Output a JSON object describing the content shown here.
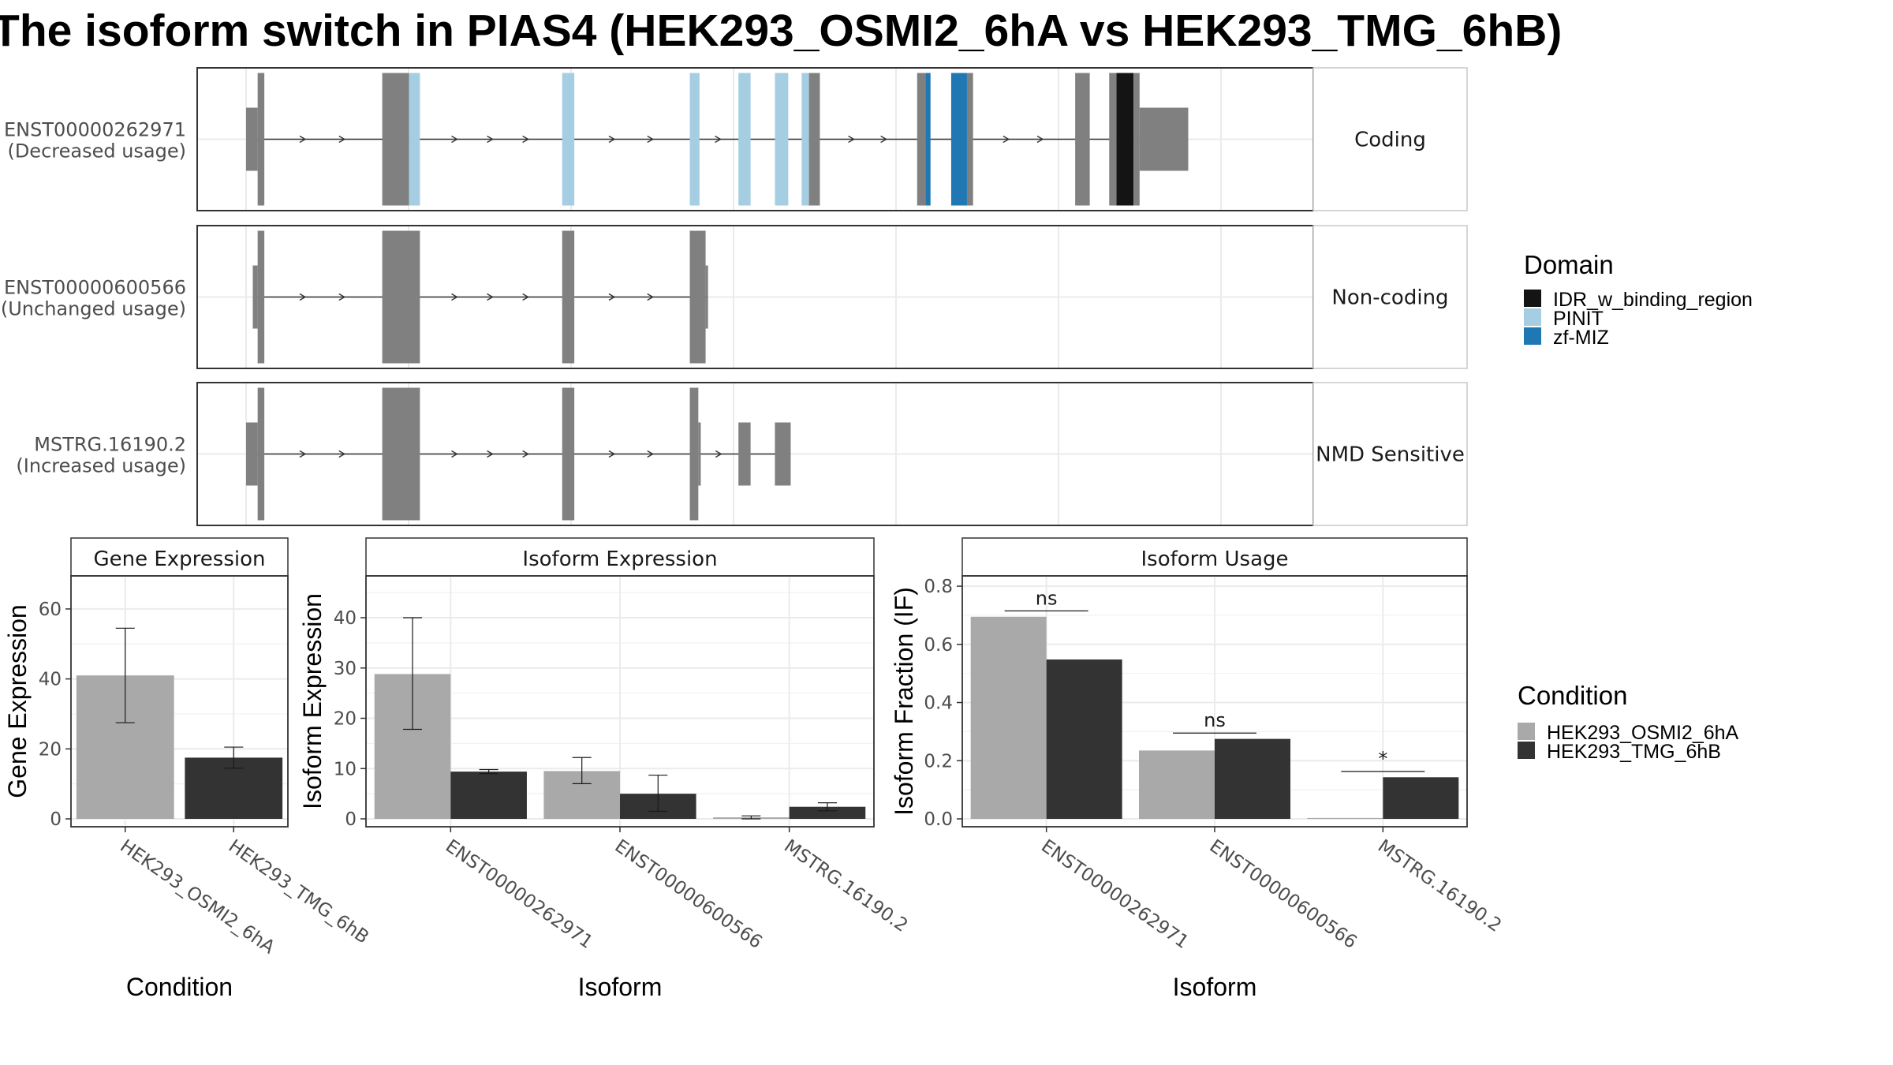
{
  "title": "The isoform switch in PIAS4 (HEK293_OSMI2_6hA vs HEK293_TMG_6hB)",
  "colors": {
    "exon": "#808080",
    "idr": "#141414",
    "pinit": "#a6cee3",
    "zfmiz": "#1f78b4",
    "cond_a": "#a9a9a9",
    "cond_b": "#333333"
  },
  "structure": {
    "transcripts": [
      {
        "id": "ENST00000262971",
        "usage": "(Decreased usage)",
        "class": "Coding",
        "segments": [
          {
            "s": 0.0,
            "e": 0.95,
            "t": "u"
          },
          {
            "s": 0.95,
            "e": 1.5,
            "t": "c"
          },
          {
            "s": 11.2,
            "e": 13.4,
            "t": "c"
          },
          {
            "s": 13.4,
            "e": 14.3,
            "t": "p"
          },
          {
            "s": 26.0,
            "e": 27.0,
            "t": "p"
          },
          {
            "s": 36.5,
            "e": 37.3,
            "t": "p"
          },
          {
            "s": 40.5,
            "e": 41.5,
            "t": "p"
          },
          {
            "s": 43.5,
            "e": 44.6,
            "t": "p"
          },
          {
            "s": 45.7,
            "e": 46.3,
            "t": "p"
          },
          {
            "s": 46.3,
            "e": 47.2,
            "t": "c"
          },
          {
            "s": 55.2,
            "e": 55.9,
            "t": "c"
          },
          {
            "s": 55.9,
            "e": 56.3,
            "t": "z"
          },
          {
            "s": 58.0,
            "e": 59.3,
            "t": "z"
          },
          {
            "s": 59.3,
            "e": 59.8,
            "t": "c"
          },
          {
            "s": 68.2,
            "e": 69.4,
            "t": "c"
          },
          {
            "s": 71.0,
            "e": 71.6,
            "t": "c"
          },
          {
            "s": 71.6,
            "e": 73.0,
            "t": "i"
          },
          {
            "s": 73.0,
            "e": 73.5,
            "t": "c"
          },
          {
            "s": 73.5,
            "e": 77.5,
            "t": "u"
          }
        ]
      },
      {
        "id": "ENST00000600566",
        "usage": "(Unchanged usage)",
        "class": "Non-coding",
        "segments": [
          {
            "s": 0.55,
            "e": 0.95,
            "t": "u"
          },
          {
            "s": 0.95,
            "e": 1.5,
            "t": "c"
          },
          {
            "s": 11.2,
            "e": 14.3,
            "t": "c"
          },
          {
            "s": 26.0,
            "e": 27.0,
            "t": "c"
          },
          {
            "s": 36.5,
            "e": 37.8,
            "t": "c"
          },
          {
            "s": 37.8,
            "e": 38.0,
            "t": "u"
          }
        ]
      },
      {
        "id": "MSTRG.16190.2",
        "usage": "(Increased usage)",
        "class": "NMD Sensitive",
        "segments": [
          {
            "s": 0.0,
            "e": 0.95,
            "t": "u"
          },
          {
            "s": 0.95,
            "e": 1.5,
            "t": "c"
          },
          {
            "s": 11.2,
            "e": 14.3,
            "t": "c"
          },
          {
            "s": 26.0,
            "e": 27.0,
            "t": "c"
          },
          {
            "s": 36.5,
            "e": 37.2,
            "t": "c"
          },
          {
            "s": 37.2,
            "e": 37.4,
            "t": "u"
          },
          {
            "s": 40.5,
            "e": 41.5,
            "t": "u"
          },
          {
            "s": 43.5,
            "e": 44.8,
            "t": "u"
          }
        ]
      }
    ]
  },
  "legend_domain": {
    "title": "Domain",
    "items": [
      "IDR_w_binding_region",
      "PINIT",
      "zf-MIZ"
    ]
  },
  "legend_condition": {
    "title": "Condition",
    "items": [
      "HEK293_OSMI2_6hA",
      "HEK293_TMG_6hB"
    ]
  },
  "chart_data": [
    {
      "type": "bar",
      "title": "Gene Expression",
      "xlabel": "Condition",
      "ylabel": "Gene Expression",
      "categories": [
        "HEK293_OSMI2_6hA",
        "HEK293_TMG_6hB"
      ],
      "values": [
        41,
        17.5
      ],
      "errors_low": [
        27.5,
        14.5
      ],
      "errors_high": [
        54.5,
        20.5
      ],
      "yticks": [
        "0",
        "20",
        "40",
        "60"
      ],
      "ylim": [
        0,
        69
      ]
    },
    {
      "type": "bar",
      "title": "Isoform Expression",
      "xlabel": "Isoform",
      "ylabel": "Isoform Expression",
      "categories": [
        "ENST00000262971",
        "ENST00000600566",
        "MSTRG.16190.2"
      ],
      "series": [
        {
          "name": "HEK293_OSMI2_6hA",
          "values": [
            28.8,
            9.5,
            0.3
          ],
          "err_low": [
            17.8,
            7.0,
            0.0
          ],
          "err_high": [
            40.0,
            12.2,
            0.6
          ]
        },
        {
          "name": "HEK293_TMG_6hB",
          "values": [
            9.4,
            5.0,
            2.4
          ],
          "err_low": [
            9.0,
            1.5,
            1.6
          ],
          "err_high": [
            9.8,
            8.7,
            3.2
          ]
        }
      ],
      "yticks": [
        "0",
        "10",
        "20",
        "30",
        "40"
      ],
      "ylim": [
        0,
        48
      ]
    },
    {
      "type": "bar",
      "title": "Isoform Usage",
      "xlabel": "Isoform",
      "ylabel": "Isoform Fraction (IF)",
      "categories": [
        "ENST00000262971",
        "ENST00000600566",
        "MSTRG.16190.2"
      ],
      "series": [
        {
          "name": "HEK293_OSMI2_6hA",
          "values": [
            0.695,
            0.235,
            0.003
          ]
        },
        {
          "name": "HEK293_TMG_6hB",
          "values": [
            0.548,
            0.275,
            0.143
          ]
        }
      ],
      "significance": [
        "ns",
        "ns",
        "*"
      ],
      "yticks": [
        "0.0",
        "0.2",
        "0.4",
        "0.6",
        "0.8"
      ],
      "ylim": [
        0,
        0.83
      ]
    }
  ]
}
